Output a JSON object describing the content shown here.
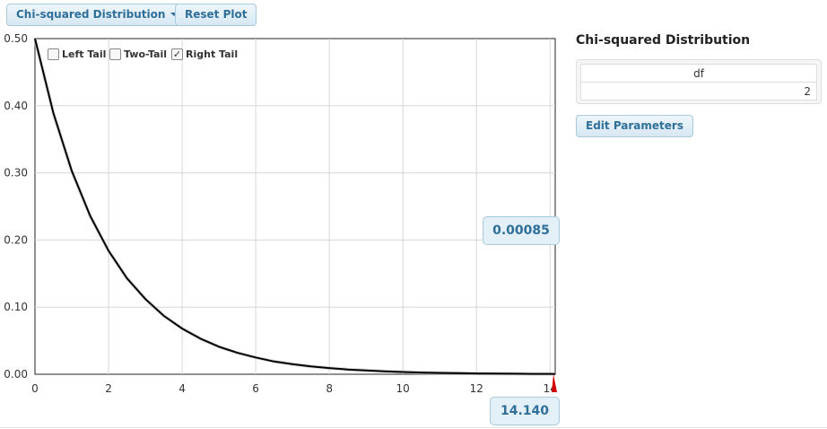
{
  "toolbar": {
    "distribution_label": "Chi-squared Distribution",
    "reset_label": "Reset Plot"
  },
  "tails": {
    "left": {
      "label": "Left Tail",
      "checked": false
    },
    "two": {
      "label": "Two-Tail",
      "checked": false
    },
    "right": {
      "label": "Right Tail",
      "checked": true
    }
  },
  "probability_value": "0.00085",
  "critical_value": "14.140",
  "sidebar": {
    "title": "Chi-squared Distribution",
    "param_header": "df",
    "param_value": "2",
    "edit_label": "Edit Parameters"
  },
  "chart_data": {
    "type": "line",
    "title": "",
    "xlabel": "",
    "ylabel": "",
    "xlim": [
      0,
      14.14
    ],
    "ylim": [
      0,
      0.5
    ],
    "x_ticks": [
      0,
      2,
      4,
      6,
      8,
      10,
      12,
      14
    ],
    "x_tick_labels": [
      "0",
      "2",
      "4",
      "6",
      "8",
      "10",
      "12",
      "14"
    ],
    "y_ticks": [
      0,
      0.1,
      0.2,
      0.3,
      0.4,
      0.5
    ],
    "y_tick_labels": [
      "0.00",
      "0.10",
      "0.20",
      "0.30",
      "0.40",
      "0.50"
    ],
    "grid": true,
    "series": [
      {
        "x": [
          0,
          0.5,
          1,
          1.5,
          2,
          2.5,
          3,
          3.5,
          4,
          4.5,
          5,
          5.5,
          6,
          6.5,
          7,
          7.5,
          8,
          8.5,
          9,
          9.5,
          10,
          10.5,
          11,
          11.5,
          12,
          12.5,
          13,
          13.5,
          14,
          14.14
        ],
        "y": [
          0.5,
          0.389,
          0.303,
          0.236,
          0.184,
          0.143,
          0.112,
          0.087,
          0.068,
          0.053,
          0.041,
          0.032,
          0.025,
          0.019,
          0.015,
          0.0118,
          0.0092,
          0.0071,
          0.0056,
          0.0043,
          0.0034,
          0.0026,
          0.002,
          0.0016,
          0.0012,
          0.001,
          0.0008,
          0.0006,
          0.0005,
          0.00043
        ]
      }
    ],
    "shaded_region": {
      "from": 14.14,
      "to": 14.14,
      "color": "#d40000"
    },
    "marker_color": "#d40000"
  }
}
